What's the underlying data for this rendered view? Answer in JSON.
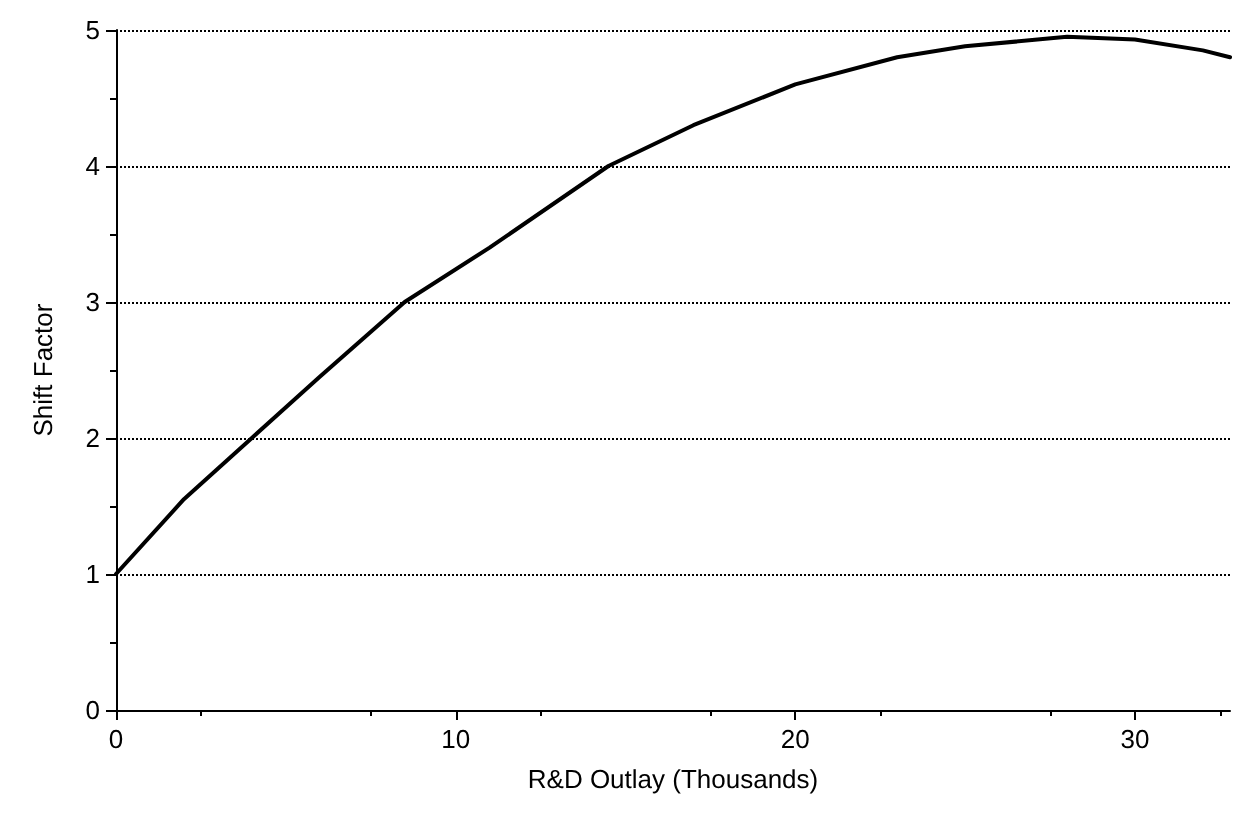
{
  "chart_data": {
    "type": "line",
    "xlabel": "R&D Outlay (Thousands)",
    "ylabel": "Shift Factor",
    "x": [
      0,
      2,
      4,
      6,
      8.5,
      11,
      14.5,
      17,
      20,
      23,
      25,
      28,
      30,
      32,
      32.8
    ],
    "series": [
      {
        "color": "#000000",
        "values": [
          1,
          1.55,
          2,
          2.45,
          3,
          3.4,
          4,
          4.3,
          4.6,
          4.8,
          4.88,
          4.95,
          4.93,
          4.85,
          4.8
        ]
      }
    ],
    "xlim": [
      0,
      32.8
    ],
    "xticks": [
      0,
      10,
      20,
      30
    ],
    "ylim": [
      0,
      5
    ],
    "yticks": [
      0,
      1,
      2,
      3,
      4,
      5
    ],
    "grid": "y",
    "marker": "none",
    "line_style": "solid"
  }
}
